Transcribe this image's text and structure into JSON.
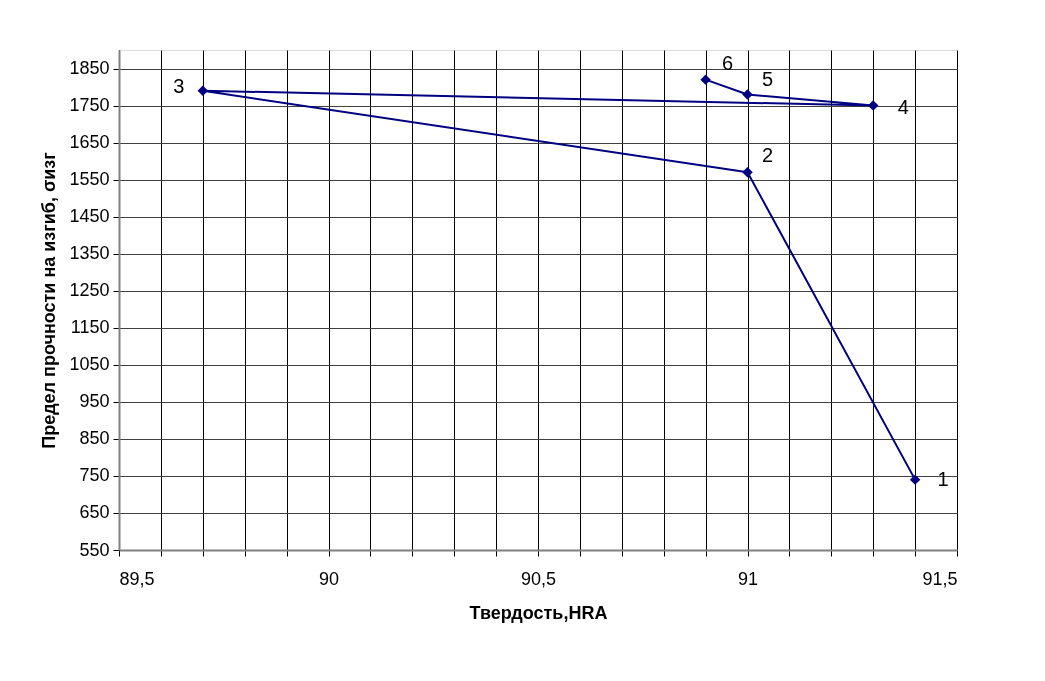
{
  "chart_data": {
    "type": "line",
    "xlabel": "Твердость,HRA",
    "ylabel": "Предел прочности на изгиб, σизг",
    "x": [
      91.4,
      91.0,
      89.7,
      91.3,
      91.0,
      90.9
    ],
    "series": [
      {
        "color": "#000080",
        "values": [
          740,
          1570,
          1790,
          1750,
          1780,
          1820
        ]
      }
    ],
    "marker": "diamond",
    "line_style": "solid",
    "grid": true,
    "xlim": [
      89.5,
      91.5
    ],
    "xticks": [
      {
        "value": 89.5,
        "label": "89,5"
      },
      {
        "value": 89.6,
        "label": null
      },
      {
        "value": 89.7,
        "label": null
      },
      {
        "value": 89.8,
        "label": null
      },
      {
        "value": 89.9,
        "label": null
      },
      90,
      {
        "value": 90.1,
        "label": null
      },
      {
        "value": 90.2,
        "label": null
      },
      {
        "value": 90.3,
        "label": null
      },
      {
        "value": 90.4,
        "label": null
      },
      {
        "value": 90.5,
        "label": "90,5"
      },
      {
        "value": 90.6,
        "label": null
      },
      {
        "value": 90.7,
        "label": null
      },
      {
        "value": 90.8,
        "label": null
      },
      {
        "value": 90.9,
        "label": null
      },
      91,
      {
        "value": 91.1,
        "label": null
      },
      {
        "value": 91.2,
        "label": null
      },
      {
        "value": 91.3,
        "label": null
      },
      {
        "value": 91.4,
        "label": null
      },
      {
        "value": 91.5,
        "label": "91,5"
      }
    ],
    "ylim": [
      550,
      1900
    ],
    "yticks": [
      550,
      650,
      750,
      850,
      950,
      1050,
      1150,
      1250,
      1350,
      1450,
      1550,
      1650,
      1750,
      1850
    ],
    "annotations": [
      {
        "text": "1",
        "x": 91.4,
        "y": 740
      },
      {
        "text": "2",
        "x": 91.0,
        "y": 1570
      },
      {
        "text": "3",
        "x": 89.7,
        "y": 1790
      },
      {
        "text": "4",
        "x": 91.3,
        "y": 1750
      },
      {
        "text": "5",
        "x": 91.0,
        "y": 1780
      },
      {
        "text": "6",
        "x": 90.9,
        "y": 1820
      }
    ]
  }
}
